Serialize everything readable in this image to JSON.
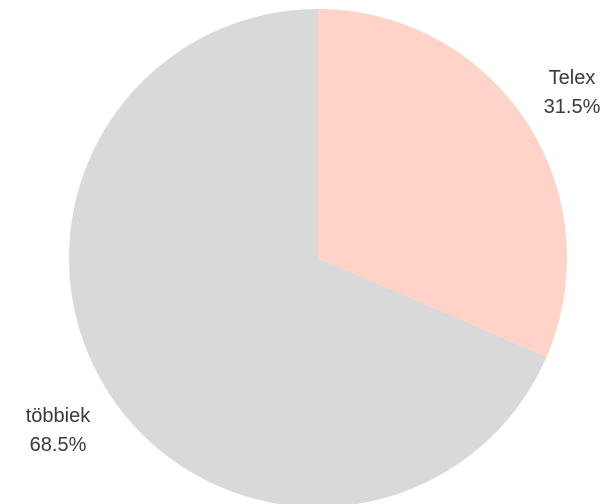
{
  "chart_data": {
    "type": "pie",
    "title": "",
    "slices": [
      {
        "label": "Telex",
        "percent_label": "31.5%",
        "value": 31.5,
        "color": "#ffd3c7",
        "label_side": "right"
      },
      {
        "label": "többiek",
        "percent_label": "68.5%",
        "value": 68.5,
        "color": "#d9d9d9",
        "label_side": "left"
      }
    ]
  }
}
